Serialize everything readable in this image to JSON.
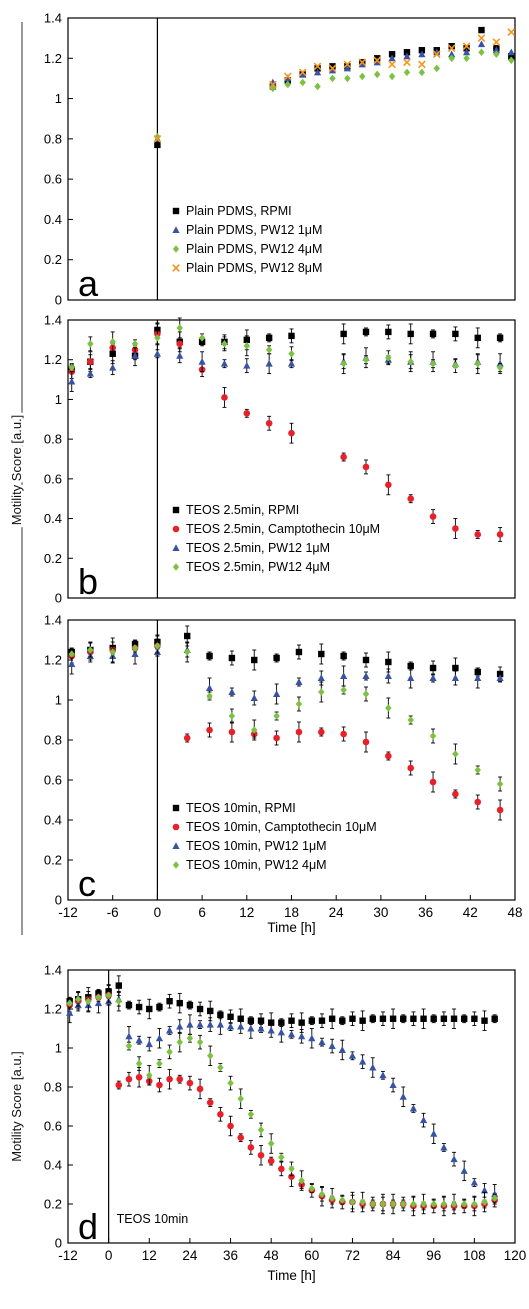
{
  "figure": {
    "shared_ylabel": "Motility Score [a.u.]"
  },
  "chart_data": [
    {
      "type": "scatter",
      "panel_letter": "a",
      "title": "",
      "xlabel": "",
      "ylabel": "",
      "xlim": [
        -12,
        48
      ],
      "ylim": [
        0,
        1.4
      ],
      "yticks": [
        "0",
        "0.2",
        "0.4",
        "0.6",
        "0.8",
        "1",
        "1.2",
        "1.4"
      ],
      "legend": "bottom-left",
      "series": [
        {
          "name": "Plain PDMS, RPMI",
          "marker": "square",
          "color": "#000000",
          "x": [
            0,
            15.5,
            17.5,
            19.5,
            21.5,
            23.5,
            25.5,
            27.5,
            29.5,
            31.5,
            33.5,
            35.5,
            37.5,
            39.5,
            41.5,
            43.5,
            45.5,
            47.5
          ],
          "y": [
            0.77,
            1.06,
            1.09,
            1.12,
            1.15,
            1.16,
            1.16,
            1.18,
            1.2,
            1.22,
            1.23,
            1.24,
            1.24,
            1.26,
            1.25,
            1.34,
            1.25,
            1.21
          ]
        },
        {
          "name": "Plain PDMS, PW12 1μM",
          "marker": "triangle",
          "color": "#3953a4",
          "x": [
            0,
            15.5,
            17.5,
            19.5,
            21.5,
            23.5,
            25.5,
            27.5,
            29.5,
            31.5,
            33.5,
            35.5,
            37.5,
            39.5,
            41.5,
            43.5,
            45.5,
            47.5
          ],
          "y": [
            0.8,
            1.08,
            1.1,
            1.12,
            1.13,
            1.14,
            1.15,
            1.17,
            1.18,
            1.2,
            1.21,
            1.22,
            1.23,
            1.22,
            1.23,
            1.27,
            1.24,
            1.23
          ]
        },
        {
          "name": "Plain PDMS, PW12 4μM",
          "marker": "diamond",
          "color": "#7cc242",
          "x": [
            0,
            15.5,
            17.5,
            19.5,
            21.5,
            23.5,
            25.5,
            27.5,
            29.5,
            31.5,
            33.5,
            35.5,
            37.5,
            39.5,
            41.5,
            43.5,
            45.5,
            47.5
          ],
          "y": [
            0.81,
            1.05,
            1.07,
            1.08,
            1.06,
            1.1,
            1.1,
            1.11,
            1.12,
            1.11,
            1.13,
            1.13,
            1.15,
            1.2,
            1.2,
            1.23,
            1.22,
            1.19
          ]
        },
        {
          "name": "Plain PDMS, PW12 8μM",
          "marker": "x",
          "color": "#f7941d",
          "x": [
            0,
            15.5,
            17.5,
            19.5,
            21.5,
            23.5,
            25.5,
            27.5,
            29.5,
            31.5,
            33.5,
            35.5,
            37.5,
            39.5,
            41.5,
            43.5,
            45.5,
            47.5
          ],
          "y": [
            0.8,
            1.07,
            1.11,
            1.13,
            1.16,
            1.15,
            1.17,
            1.18,
            1.19,
            1.17,
            1.18,
            1.17,
            1.22,
            1.25,
            1.26,
            1.3,
            1.28,
            1.33
          ]
        }
      ]
    },
    {
      "type": "scatter",
      "panel_letter": "b",
      "title": "",
      "xlabel": "",
      "ylabel": "",
      "xlim": [
        -12,
        48
      ],
      "ylim": [
        0,
        1.4
      ],
      "yticks": [
        "0",
        "0.2",
        "0.4",
        "0.6",
        "0.8",
        "1",
        "1.2",
        "1.4"
      ],
      "legend": "bottom-left",
      "series": [
        {
          "name": "TEOS 2.5min, RPMI",
          "marker": "square",
          "color": "#000000",
          "x": [
            -11.5,
            -9,
            -6,
            -3,
            0,
            3,
            6,
            9,
            12,
            15,
            18,
            25,
            28,
            31,
            34,
            37,
            40,
            43,
            46
          ],
          "y": [
            1.15,
            1.19,
            1.23,
            1.22,
            1.35,
            1.29,
            1.29,
            1.29,
            1.3,
            1.31,
            1.32,
            1.33,
            1.34,
            1.34,
            1.33,
            1.33,
            1.33,
            1.31,
            1.31
          ]
        },
        {
          "name": "TEOS 2.5min, Camptothecin 10μM",
          "marker": "circle",
          "color": "#e8202a",
          "x": [
            -11.5,
            -9,
            -6,
            -3,
            0,
            3,
            6,
            9,
            12,
            15,
            18,
            25,
            28,
            31,
            34,
            37,
            40,
            43,
            46
          ],
          "y": [
            1.14,
            1.19,
            1.26,
            1.25,
            1.33,
            1.28,
            1.15,
            1.01,
            0.93,
            0.88,
            0.83,
            0.71,
            0.66,
            0.57,
            0.5,
            0.41,
            0.35,
            0.32,
            0.32
          ]
        },
        {
          "name": "TEOS 2.5min, PW12 1μM",
          "marker": "triangle",
          "color": "#3953a4",
          "x": [
            -11.5,
            -9,
            -6,
            -3,
            0,
            3,
            6,
            9,
            12,
            15,
            18,
            25,
            28,
            31,
            34,
            37,
            40,
            43,
            46
          ],
          "y": [
            1.09,
            1.13,
            1.16,
            1.22,
            1.23,
            1.22,
            1.19,
            1.18,
            1.17,
            1.18,
            1.18,
            1.19,
            1.21,
            1.2,
            1.19,
            1.19,
            1.18,
            1.19,
            1.18
          ]
        },
        {
          "name": "TEOS 2.5min, PW12 4μM",
          "marker": "diamond",
          "color": "#7cc242",
          "x": [
            -11.5,
            -9,
            -6,
            -3,
            0,
            3,
            6,
            9,
            12,
            15,
            18,
            25,
            28,
            31,
            34,
            37,
            40,
            43,
            46
          ],
          "y": [
            1.16,
            1.28,
            1.29,
            1.28,
            1.31,
            1.36,
            1.31,
            1.28,
            1.27,
            1.25,
            1.23,
            1.18,
            1.2,
            1.21,
            1.19,
            1.18,
            1.17,
            1.18,
            1.16
          ]
        }
      ]
    },
    {
      "type": "scatter",
      "panel_letter": "c",
      "title": "",
      "xlabel": "Time [h]",
      "ylabel": "",
      "xlim": [
        -12,
        48
      ],
      "ylim": [
        0,
        1.4
      ],
      "xticks": [
        "-12",
        "-6",
        "0",
        "6",
        "12",
        "18",
        "24",
        "30",
        "36",
        "42",
        "48"
      ],
      "yticks": [
        "0",
        "0.2",
        "0.4",
        "0.6",
        "0.8",
        "1",
        "1.2",
        "1.4"
      ],
      "legend": "bottom-left",
      "series": [
        {
          "name": "TEOS 10min, RPMI",
          "marker": "square",
          "color": "#000000",
          "x": [
            -11.5,
            -9,
            -6,
            -3,
            0,
            4,
            7,
            10,
            13,
            16,
            19,
            22,
            25,
            28,
            31,
            34,
            37,
            40,
            43,
            46
          ],
          "y": [
            1.24,
            1.25,
            1.26,
            1.28,
            1.29,
            1.32,
            1.22,
            1.21,
            1.2,
            1.21,
            1.24,
            1.23,
            1.22,
            1.2,
            1.19,
            1.17,
            1.16,
            1.16,
            1.14,
            1.13
          ]
        },
        {
          "name": "TEOS 10min, Camptothecin 10μM",
          "marker": "circle",
          "color": "#e8202a",
          "x": [
            -11.5,
            -9,
            -6,
            -3,
            0,
            4,
            7,
            10,
            13,
            16,
            19,
            22,
            25,
            28,
            31,
            34,
            37,
            40,
            43,
            46
          ],
          "y": [
            1.22,
            1.24,
            1.25,
            1.26,
            1.27,
            0.81,
            0.85,
            0.84,
            0.83,
            0.81,
            0.84,
            0.84,
            0.83,
            0.79,
            0.72,
            0.66,
            0.59,
            0.53,
            0.49,
            0.45
          ]
        },
        {
          "name": "TEOS 10min, PW12 1μM",
          "marker": "triangle",
          "color": "#3953a4",
          "x": [
            -11.5,
            -9,
            -6,
            -3,
            0,
            4,
            7,
            10,
            13,
            16,
            19,
            22,
            25,
            28,
            31,
            34,
            37,
            40,
            43,
            46
          ],
          "y": [
            1.18,
            1.22,
            1.22,
            1.23,
            1.24,
            1.25,
            1.06,
            1.04,
            1.01,
            1.03,
            1.09,
            1.11,
            1.12,
            1.12,
            1.12,
            1.11,
            1.11,
            1.11,
            1.11,
            1.11
          ]
        },
        {
          "name": "TEOS 10min, PW12 4μM",
          "marker": "diamond",
          "color": "#7cc242",
          "x": [
            -11.5,
            -9,
            -6,
            -3,
            0,
            4,
            7,
            10,
            13,
            16,
            19,
            22,
            25,
            28,
            31,
            34,
            37,
            40,
            43,
            46
          ],
          "y": [
            1.23,
            1.25,
            1.24,
            1.26,
            1.27,
            1.24,
            1.02,
            0.92,
            0.85,
            0.92,
            0.98,
            1.04,
            1.05,
            1.03,
            0.96,
            0.9,
            0.82,
            0.73,
            0.65,
            0.58
          ]
        }
      ]
    },
    {
      "type": "scatter",
      "panel_letter": "d",
      "title": "",
      "xlabel": "Time [h]",
      "ylabel": "Motility Score [a.u.]",
      "annotation": "TEOS 10min",
      "xlim": [
        -12,
        120
      ],
      "ylim": [
        0,
        1.4
      ],
      "xticks": [
        "-12",
        "0",
        "12",
        "24",
        "36",
        "48",
        "60",
        "72",
        "84",
        "96",
        "108",
        "120"
      ],
      "yticks": [
        "0",
        "0.2",
        "0.4",
        "0.6",
        "0.8",
        "1",
        "1.2",
        "1.4"
      ],
      "legend": "none",
      "x": [
        -11.5,
        -9,
        -6,
        -3,
        0,
        3,
        6,
        9,
        12,
        15,
        18,
        21,
        24,
        27,
        30,
        33,
        36,
        39,
        42,
        45,
        48,
        51,
        54,
        57,
        60,
        63,
        66,
        69,
        72,
        75,
        78,
        81,
        84,
        87,
        90,
        93,
        96,
        99,
        102,
        105,
        108,
        111,
        114
      ],
      "series": [
        {
          "name": "TEOS 10min, RPMI",
          "marker": "square",
          "color": "#000000",
          "y": [
            1.24,
            1.25,
            1.26,
            1.28,
            1.29,
            1.32,
            1.22,
            1.21,
            1.2,
            1.21,
            1.24,
            1.23,
            1.22,
            1.2,
            1.19,
            1.17,
            1.16,
            1.15,
            1.14,
            1.14,
            1.13,
            1.13,
            1.14,
            1.13,
            1.14,
            1.14,
            1.15,
            1.14,
            1.15,
            1.14,
            1.15,
            1.15,
            1.15,
            1.15,
            1.15,
            1.15,
            1.15,
            1.15,
            1.15,
            1.15,
            1.15,
            1.14,
            1.15
          ]
        },
        {
          "name": "TEOS 10min, Camptothecin 10μM",
          "marker": "circle",
          "color": "#e8202a",
          "y": [
            1.22,
            1.24,
            1.25,
            1.26,
            1.27,
            0.81,
            0.84,
            0.85,
            0.83,
            0.81,
            0.84,
            0.84,
            0.82,
            0.79,
            0.72,
            0.66,
            0.6,
            0.54,
            0.49,
            0.45,
            0.42,
            0.38,
            0.34,
            0.3,
            0.27,
            0.24,
            0.22,
            0.21,
            0.21,
            0.2,
            0.2,
            0.2,
            0.2,
            0.2,
            0.19,
            0.19,
            0.19,
            0.19,
            0.19,
            0.19,
            0.19,
            0.2,
            0.22
          ]
        },
        {
          "name": "TEOS 10min, PW12 1μM",
          "marker": "triangle",
          "color": "#3953a4",
          "y": [
            1.18,
            1.22,
            1.22,
            1.23,
            1.24,
            1.25,
            1.06,
            1.04,
            1.02,
            1.05,
            1.09,
            1.11,
            1.12,
            1.12,
            1.12,
            1.12,
            1.11,
            1.11,
            1.1,
            1.1,
            1.09,
            1.08,
            1.07,
            1.06,
            1.05,
            1.03,
            1.01,
            0.99,
            0.96,
            0.93,
            0.9,
            0.86,
            0.81,
            0.75,
            0.69,
            0.63,
            0.56,
            0.49,
            0.43,
            0.37,
            0.31,
            0.27,
            0.25
          ]
        },
        {
          "name": "TEOS 10min, PW12 4μM",
          "marker": "diamond",
          "color": "#7cc242",
          "y": [
            1.23,
            1.25,
            1.24,
            1.26,
            1.27,
            1.24,
            1.01,
            0.92,
            0.86,
            0.92,
            0.98,
            1.03,
            1.05,
            1.03,
            0.96,
            0.9,
            0.82,
            0.74,
            0.66,
            0.58,
            0.51,
            0.44,
            0.38,
            0.32,
            0.28,
            0.25,
            0.23,
            0.22,
            0.21,
            0.21,
            0.2,
            0.2,
            0.2,
            0.2,
            0.2,
            0.2,
            0.2,
            0.2,
            0.2,
            0.2,
            0.2,
            0.21,
            0.23
          ]
        }
      ]
    }
  ]
}
